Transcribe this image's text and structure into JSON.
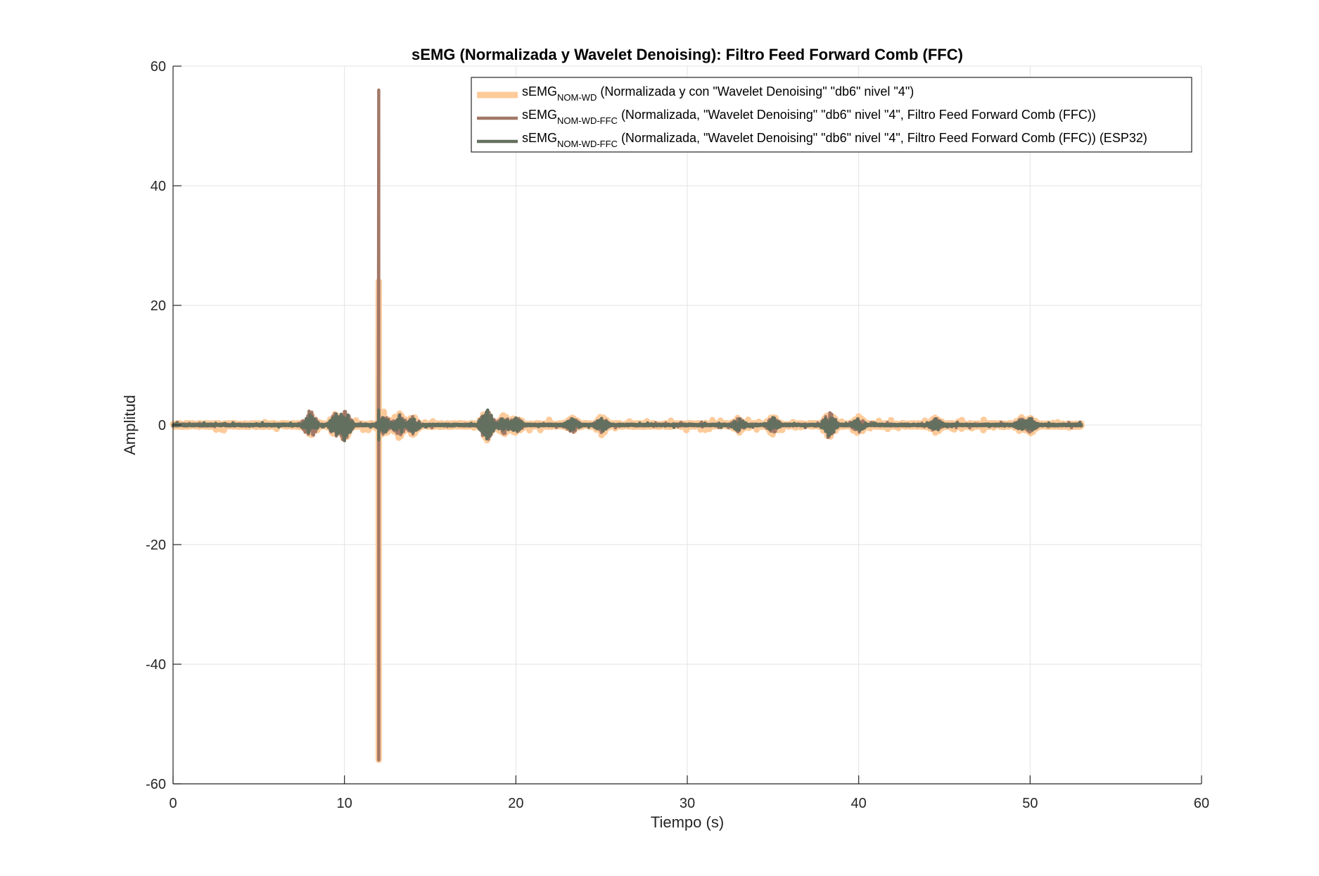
{
  "chart_data": {
    "type": "line",
    "title": "sEMG (Normalizada y Wavelet Denoising): Filtro Feed Forward Comb (FFC)",
    "xlabel": "Tiempo (s)",
    "ylabel": "Amplitud",
    "xlim": [
      0,
      60
    ],
    "ylim": [
      -60,
      60
    ],
    "xticks": [
      "0",
      "10",
      "20",
      "30",
      "40",
      "50",
      "60"
    ],
    "yticks": [
      "60",
      "40",
      "20",
      "0",
      "-20",
      "-40",
      "-60"
    ],
    "grid": true,
    "legend_position": "top-right",
    "series": [
      {
        "name_main": "sEMG",
        "name_sub": "NOM-WD",
        "name_rest": " (Normalizada y con \"Wavelet Denoising\" \"db6\" nivel \"4\")",
        "color": "#FDCB9A",
        "x_end": 53,
        "spike": {
          "x": 12.0,
          "max": 24,
          "min": -56
        },
        "bursts": [
          {
            "x": 8.0,
            "amp": 2.2
          },
          {
            "x": 9.5,
            "amp": 2.5
          },
          {
            "x": 10.0,
            "amp": 3.0
          },
          {
            "x": 12.3,
            "amp": 2.5
          },
          {
            "x": 13.2,
            "amp": 2.7
          },
          {
            "x": 14.0,
            "amp": 2.0
          },
          {
            "x": 18.3,
            "amp": 3.0
          },
          {
            "x": 19.3,
            "amp": 2.0
          },
          {
            "x": 20.0,
            "amp": 2.0
          },
          {
            "x": 23.3,
            "amp": 1.6
          },
          {
            "x": 25.0,
            "amp": 2.0
          },
          {
            "x": 33.0,
            "amp": 1.5
          },
          {
            "x": 35.0,
            "amp": 2.0
          },
          {
            "x": 38.3,
            "amp": 3.0
          },
          {
            "x": 40.0,
            "amp": 1.8
          },
          {
            "x": 44.5,
            "amp": 1.6
          },
          {
            "x": 49.5,
            "amp": 1.5
          },
          {
            "x": 50.0,
            "amp": 1.8
          }
        ],
        "baseline_amp": 0.9
      },
      {
        "name_main": "sEMG",
        "name_sub": "NOM-WD-FFC",
        "name_rest": " (Normalizada, \"Wavelet Denoising\" \"db6\" nivel \"4\", Filtro Feed Forward Comb (FFC))",
        "color": "#A37868",
        "x_end": 53,
        "spike": {
          "x": 12.0,
          "max": 56,
          "min": -56
        },
        "bursts": [
          {
            "x": 8.0,
            "amp": 3.2
          },
          {
            "x": 9.5,
            "amp": 2.5
          },
          {
            "x": 10.0,
            "amp": 3.5
          },
          {
            "x": 12.3,
            "amp": 2.0
          },
          {
            "x": 13.2,
            "amp": 2.2
          },
          {
            "x": 14.0,
            "amp": 1.8
          },
          {
            "x": 18.3,
            "amp": 3.5
          },
          {
            "x": 19.3,
            "amp": 1.8
          },
          {
            "x": 20.0,
            "amp": 1.6
          },
          {
            "x": 23.3,
            "amp": 1.5
          },
          {
            "x": 25.0,
            "amp": 1.6
          },
          {
            "x": 33.0,
            "amp": 1.4
          },
          {
            "x": 35.0,
            "amp": 1.6
          },
          {
            "x": 38.3,
            "amp": 2.8
          },
          {
            "x": 40.0,
            "amp": 1.5
          },
          {
            "x": 44.5,
            "amp": 1.4
          },
          {
            "x": 49.5,
            "amp": 1.3
          },
          {
            "x": 50.0,
            "amp": 1.5
          }
        ],
        "baseline_amp": 0.5
      },
      {
        "name_main": "sEMG",
        "name_sub": "NOM-WD-FFC",
        "name_rest": " (Normalizada, \"Wavelet Denoising\" \"db6\" nivel \"4\", Filtro Feed Forward Comb (FFC)) (ESP32)",
        "color": "#64705F",
        "x_end": 53,
        "spike": {
          "x": 12.0,
          "max": 2.5,
          "min": -2.5
        },
        "bursts": [
          {
            "x": 8.0,
            "amp": 2.0
          },
          {
            "x": 9.5,
            "amp": 2.2
          },
          {
            "x": 10.0,
            "amp": 3.0
          },
          {
            "x": 12.3,
            "amp": 1.6
          },
          {
            "x": 13.2,
            "amp": 1.8
          },
          {
            "x": 14.0,
            "amp": 1.5
          },
          {
            "x": 18.3,
            "amp": 3.3
          },
          {
            "x": 19.3,
            "amp": 1.6
          },
          {
            "x": 20.0,
            "amp": 1.5
          },
          {
            "x": 23.3,
            "amp": 1.3
          },
          {
            "x": 25.0,
            "amp": 1.4
          },
          {
            "x": 33.0,
            "amp": 1.2
          },
          {
            "x": 35.0,
            "amp": 1.5
          },
          {
            "x": 38.3,
            "amp": 2.4
          },
          {
            "x": 40.0,
            "amp": 1.3
          },
          {
            "x": 44.5,
            "amp": 1.2
          },
          {
            "x": 49.5,
            "amp": 1.1
          },
          {
            "x": 50.0,
            "amp": 1.3
          }
        ],
        "baseline_amp": 0.4
      }
    ]
  }
}
